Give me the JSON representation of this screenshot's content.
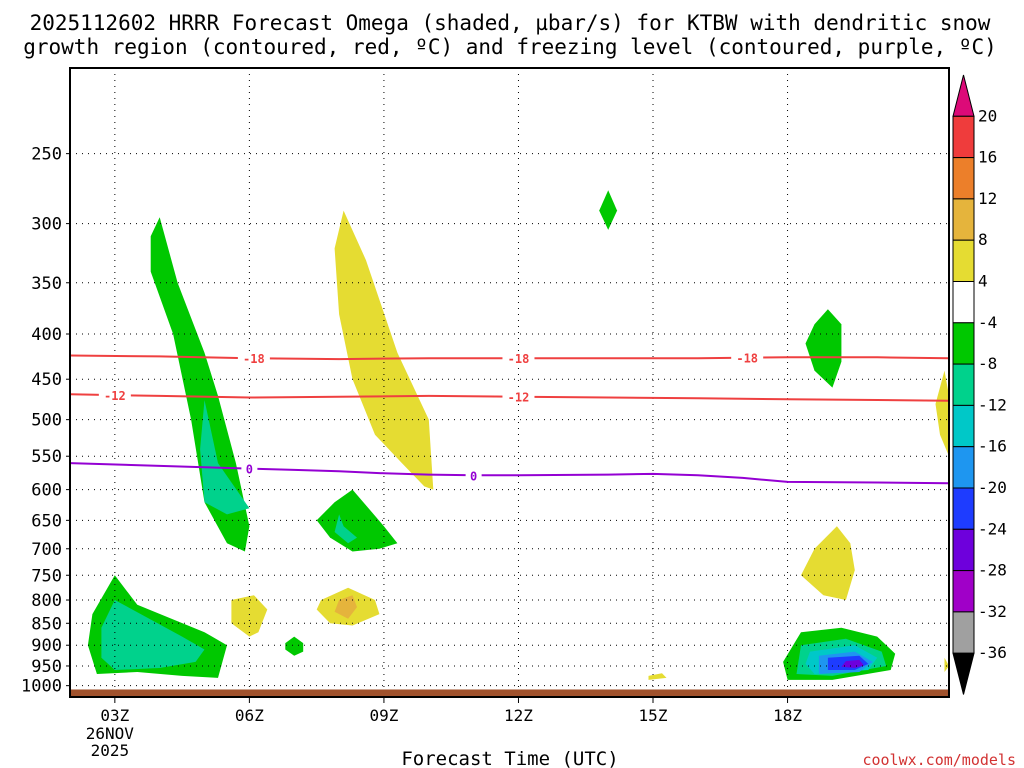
{
  "chart_data": {
    "type": "heatmap",
    "title_line1": "2025112602 HRRR Forecast Omega (shaded, µbar/s) for KTBW with dendritic snow",
    "title_line2": "growth region (contoured, red, ºC) and freezing level (contoured, purple, ºC)",
    "xlabel": "Forecast Time (UTC)",
    "ylabel": "",
    "x_ticks": [
      {
        "hour": 3,
        "label": "03Z"
      },
      {
        "hour": 6,
        "label": "06Z"
      },
      {
        "hour": 9,
        "label": "09Z"
      },
      {
        "hour": 12,
        "label": "12Z"
      },
      {
        "hour": 15,
        "label": "15Z"
      },
      {
        "hour": 18,
        "label": "18Z"
      }
    ],
    "date_label_line1": "26NOV",
    "date_label_line2": "2025",
    "xlim": [
      2,
      21.6
    ],
    "y_ticks": [
      250,
      300,
      350,
      400,
      450,
      500,
      550,
      600,
      650,
      700,
      750,
      800,
      850,
      900,
      950,
      1000
    ],
    "ylim": [
      200,
      1030
    ],
    "y_scale": "log-pressure",
    "colorbar": {
      "labels": [
        "20",
        "16",
        "12",
        "8",
        "4",
        "-4",
        "-8",
        "-12",
        "-16",
        "-20",
        "-24",
        "-28",
        "-32",
        "-36"
      ],
      "colors": [
        "#dc0a78",
        "#ef3c3c",
        "#ec7f2a",
        "#e5b43c",
        "#e5dc32",
        "#ffffff",
        "#00c800",
        "#00d28c",
        "#00c8c8",
        "#1e96f0",
        "#1e3cff",
        "#6e00dc",
        "#a000c8",
        "#a0a0a0",
        "#000000"
      ]
    },
    "shaded_regions": [
      {
        "value": -6,
        "color": "#00c800",
        "points": [
          [
            4.0,
            295
          ],
          [
            4.4,
            350
          ],
          [
            5.0,
            420
          ],
          [
            5.3,
            470
          ],
          [
            5.7,
            560
          ],
          [
            6.0,
            660
          ],
          [
            5.9,
            705
          ],
          [
            5.5,
            690
          ],
          [
            5.0,
            620
          ],
          [
            4.7,
            500
          ],
          [
            4.3,
            400
          ],
          [
            3.8,
            340
          ],
          [
            3.8,
            310
          ]
        ]
      },
      {
        "value": -10,
        "color": "#00d28c",
        "points": [
          [
            5.0,
            475
          ],
          [
            5.3,
            560
          ],
          [
            6.0,
            630
          ],
          [
            5.5,
            640
          ],
          [
            5.0,
            620
          ],
          [
            4.9,
            540
          ]
        ]
      },
      {
        "value": -6,
        "color": "#00c800",
        "points": [
          [
            7.9,
            620
          ],
          [
            8.3,
            600
          ],
          [
            9.0,
            660
          ],
          [
            9.3,
            690
          ],
          [
            8.9,
            700
          ],
          [
            8.3,
            705
          ],
          [
            7.8,
            680
          ],
          [
            7.5,
            650
          ]
        ]
      },
      {
        "value": -10,
        "color": "#00d28c",
        "points": [
          [
            8.0,
            640
          ],
          [
            8.1,
            660
          ],
          [
            8.4,
            680
          ],
          [
            8.2,
            690
          ],
          [
            7.9,
            670
          ]
        ]
      },
      {
        "value": -6,
        "color": "#00c800",
        "points": [
          [
            2.5,
            830
          ],
          [
            3.0,
            750
          ],
          [
            3.5,
            810
          ],
          [
            5.0,
            870
          ],
          [
            5.5,
            900
          ],
          [
            5.3,
            980
          ],
          [
            4.5,
            975
          ],
          [
            3.5,
            965
          ],
          [
            2.6,
            970
          ],
          [
            2.4,
            900
          ]
        ]
      },
      {
        "value": -10,
        "color": "#00d28c",
        "points": [
          [
            2.7,
            860
          ],
          [
            3.0,
            800
          ],
          [
            4.5,
            880
          ],
          [
            5.0,
            910
          ],
          [
            4.8,
            940
          ],
          [
            4.0,
            955
          ],
          [
            3.0,
            960
          ],
          [
            2.7,
            930
          ]
        ]
      },
      {
        "value": -6,
        "color": "#00c800",
        "points": [
          [
            7.0,
            880
          ],
          [
            7.2,
            895
          ],
          [
            7.2,
            915
          ],
          [
            7.0,
            925
          ],
          [
            6.8,
            910
          ],
          [
            6.8,
            895
          ]
        ]
      },
      {
        "value": -6,
        "color": "#00c800",
        "points": [
          [
            14.0,
            275
          ],
          [
            14.2,
            290
          ],
          [
            14.0,
            305
          ],
          [
            13.8,
            290
          ]
        ]
      },
      {
        "value": -6,
        "color": "#00c800",
        "points": [
          [
            18.9,
            375
          ],
          [
            19.2,
            390
          ],
          [
            19.2,
            430
          ],
          [
            19.0,
            460
          ],
          [
            18.6,
            440
          ],
          [
            18.4,
            410
          ],
          [
            18.6,
            390
          ]
        ]
      },
      {
        "value": -6,
        "color": "#00c800",
        "points": [
          [
            18.3,
            870
          ],
          [
            19.2,
            860
          ],
          [
            20.0,
            880
          ],
          [
            20.4,
            920
          ],
          [
            20.3,
            960
          ],
          [
            19.0,
            985
          ],
          [
            18.0,
            985
          ],
          [
            17.9,
            940
          ]
        ]
      },
      {
        "value": -10,
        "color": "#00d28c",
        "points": [
          [
            18.3,
            900
          ],
          [
            19.3,
            885
          ],
          [
            20.1,
            915
          ],
          [
            20.2,
            950
          ],
          [
            19.0,
            975
          ],
          [
            18.2,
            970
          ]
        ]
      },
      {
        "value": -14,
        "color": "#00c8c8",
        "points": [
          [
            18.5,
            915
          ],
          [
            19.5,
            900
          ],
          [
            20.0,
            930
          ],
          [
            19.8,
            960
          ],
          [
            18.6,
            970
          ],
          [
            18.4,
            945
          ]
        ]
      },
      {
        "value": -18,
        "color": "#1e96f0",
        "points": [
          [
            18.7,
            925
          ],
          [
            19.5,
            915
          ],
          [
            19.9,
            940
          ],
          [
            19.6,
            965
          ],
          [
            18.7,
            970
          ]
        ]
      },
      {
        "value": -22,
        "color": "#1e3cff",
        "points": [
          [
            18.9,
            930
          ],
          [
            19.6,
            925
          ],
          [
            19.8,
            945
          ],
          [
            19.5,
            960
          ],
          [
            18.9,
            960
          ]
        ]
      },
      {
        "value": -26,
        "color": "#6e00dc",
        "points": [
          [
            19.3,
            938
          ],
          [
            19.6,
            935
          ],
          [
            19.7,
            948
          ],
          [
            19.5,
            955
          ],
          [
            19.2,
            952
          ]
        ]
      },
      {
        "value": 6,
        "color": "#e5dc32",
        "points": [
          [
            8.1,
            290
          ],
          [
            8.6,
            330
          ],
          [
            9.3,
            420
          ],
          [
            10.0,
            500
          ],
          [
            10.1,
            600
          ],
          [
            9.9,
            595
          ],
          [
            9.4,
            560
          ],
          [
            8.8,
            520
          ],
          [
            8.3,
            450
          ],
          [
            8.0,
            380
          ],
          [
            7.9,
            320
          ]
        ]
      },
      {
        "value": 6,
        "color": "#e5dc32",
        "points": [
          [
            5.6,
            800
          ],
          [
            6.1,
            790
          ],
          [
            6.4,
            820
          ],
          [
            6.2,
            870
          ],
          [
            6.0,
            880
          ],
          [
            5.6,
            850
          ]
        ]
      },
      {
        "value": 6,
        "color": "#e5dc32",
        "points": [
          [
            7.6,
            800
          ],
          [
            8.2,
            775
          ],
          [
            8.8,
            800
          ],
          [
            8.9,
            830
          ],
          [
            8.3,
            855
          ],
          [
            7.8,
            850
          ],
          [
            7.5,
            820
          ]
        ]
      },
      {
        "value": 10,
        "color": "#e5b43c",
        "points": [
          [
            8.0,
            800
          ],
          [
            8.3,
            790
          ],
          [
            8.4,
            815
          ],
          [
            8.2,
            840
          ],
          [
            7.9,
            825
          ]
        ]
      },
      {
        "value": 6,
        "color": "#e5dc32",
        "points": [
          [
            14.9,
            975
          ],
          [
            15.2,
            968
          ],
          [
            15.3,
            980
          ],
          [
            14.9,
            985
          ]
        ]
      },
      {
        "value": 6,
        "color": "#e5dc32",
        "points": [
          [
            19.1,
            660
          ],
          [
            19.4,
            690
          ],
          [
            19.5,
            740
          ],
          [
            19.3,
            800
          ],
          [
            18.8,
            790
          ],
          [
            18.3,
            750
          ],
          [
            18.6,
            700
          ]
        ]
      },
      {
        "value": 6,
        "color": "#e5dc32",
        "points": [
          [
            21.5,
            440
          ],
          [
            21.6,
            470
          ],
          [
            21.6,
            550
          ],
          [
            21.4,
            520
          ],
          [
            21.3,
            480
          ]
        ]
      },
      {
        "value": 6,
        "color": "#e5dc32",
        "points": [
          [
            21.5,
            930
          ],
          [
            21.6,
            950
          ],
          [
            21.5,
            965
          ]
        ]
      }
    ],
    "series": [
      {
        "name": "-18",
        "color": "#ef4040",
        "labels_at": [
          6.1,
          12.0,
          17.1
        ],
        "points": [
          [
            2,
            423
          ],
          [
            4,
            424
          ],
          [
            6,
            426
          ],
          [
            8,
            427
          ],
          [
            10,
            426
          ],
          [
            12,
            426
          ],
          [
            14,
            426
          ],
          [
            16,
            426
          ],
          [
            18,
            425
          ],
          [
            20,
            425
          ],
          [
            21.6,
            426
          ]
        ]
      },
      {
        "name": "-12",
        "color": "#ef4040",
        "labels_at": [
          3.0,
          12.0
        ],
        "points": [
          [
            2,
            468
          ],
          [
            4,
            470
          ],
          [
            6,
            472
          ],
          [
            8,
            471
          ],
          [
            10,
            470
          ],
          [
            12,
            471
          ],
          [
            14,
            472
          ],
          [
            16,
            473
          ],
          [
            18,
            474
          ],
          [
            20,
            475
          ],
          [
            21.6,
            476
          ]
        ]
      },
      {
        "name": "0",
        "color": "#9400d3",
        "labels_at": [
          6.0,
          11.0
        ],
        "points": [
          [
            2,
            560
          ],
          [
            4,
            564
          ],
          [
            5,
            566
          ],
          [
            6,
            568
          ],
          [
            7,
            570
          ],
          [
            8,
            572
          ],
          [
            9,
            575
          ],
          [
            10,
            577
          ],
          [
            11,
            578
          ],
          [
            12,
            578
          ],
          [
            14,
            577
          ],
          [
            15,
            576
          ],
          [
            16,
            578
          ],
          [
            17,
            582
          ],
          [
            18,
            588
          ],
          [
            20,
            589
          ],
          [
            21.6,
            590
          ]
        ]
      }
    ],
    "ground": {
      "color": "#a0522d",
      "pressure_top": 1010
    }
  },
  "credit": "coolwx.com/models"
}
